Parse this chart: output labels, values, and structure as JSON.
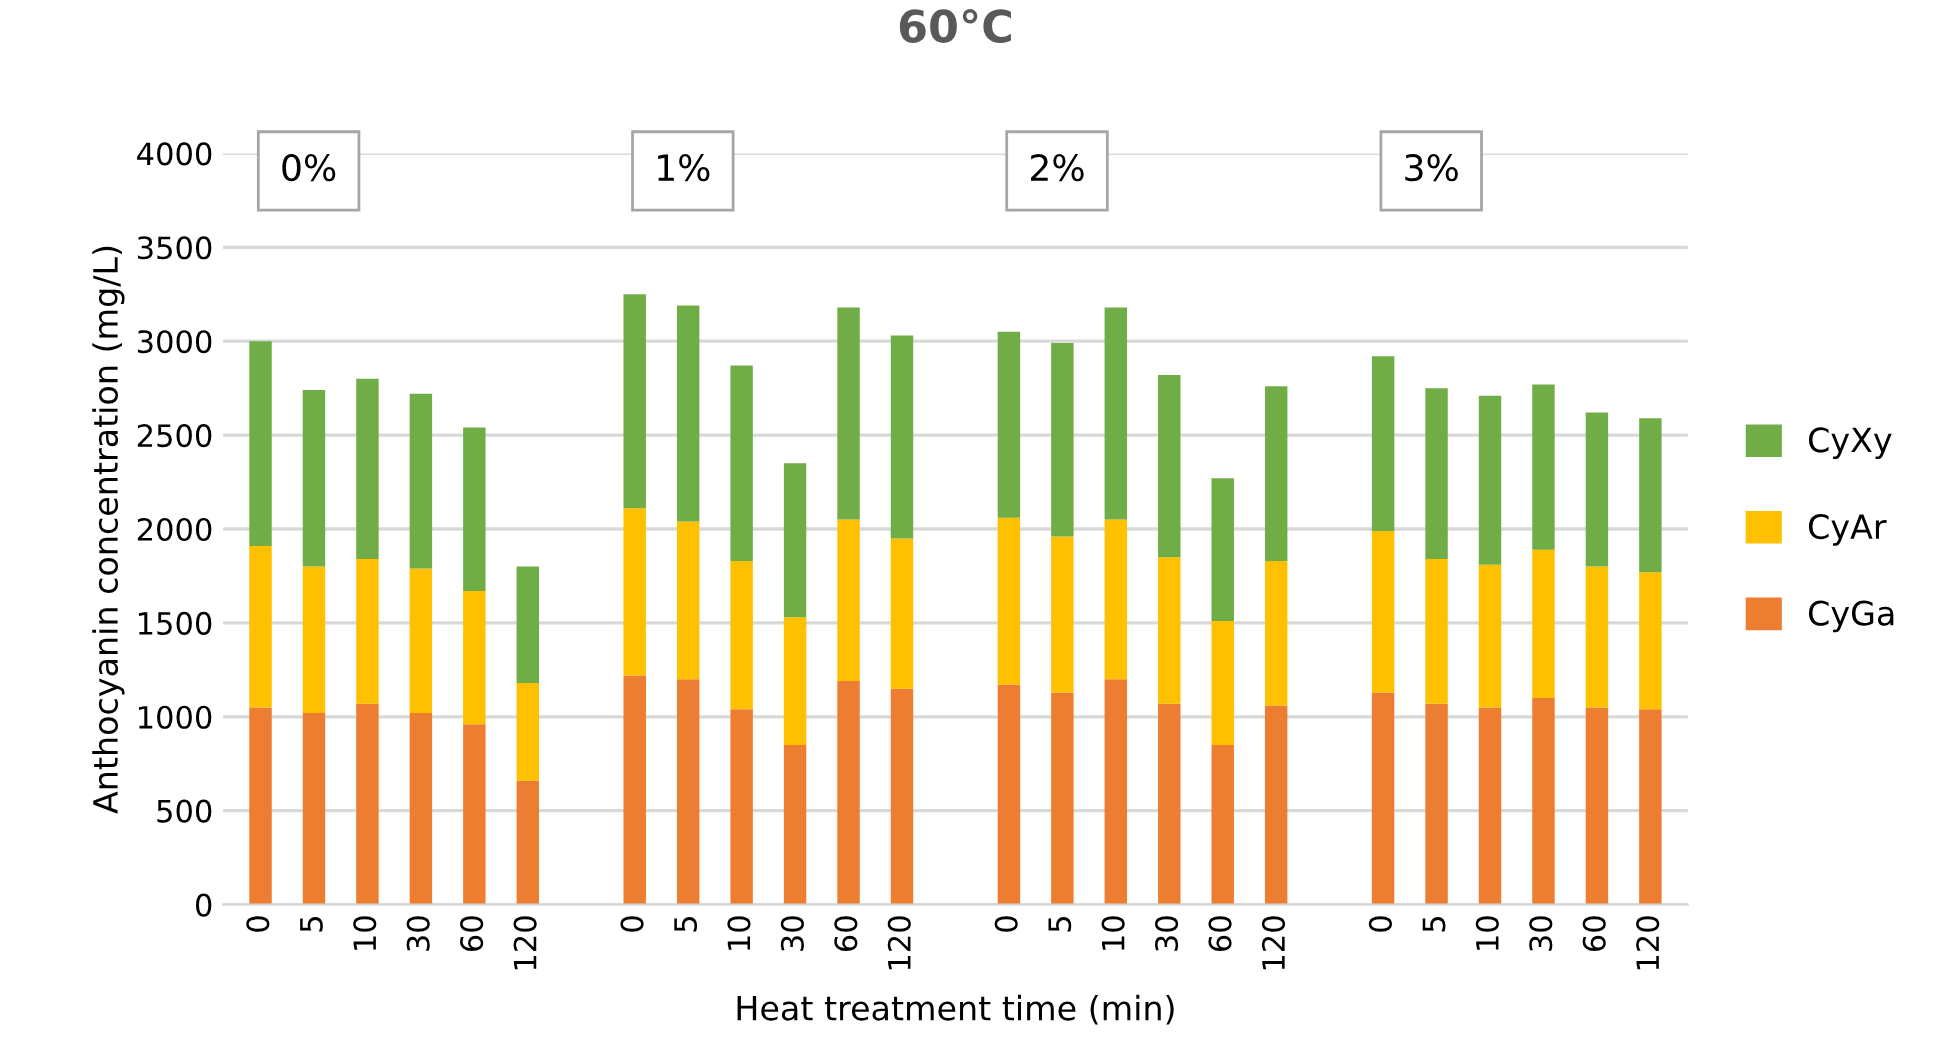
{
  "chart_data": {
    "type": "bar",
    "title": "60°C",
    "xlabel": "Heat treatment time (min)",
    "ylabel": "Anthocyanin concentration (mg/L)",
    "categories": [
      "0",
      "5",
      "10",
      "30",
      "60",
      "120",
      null,
      "0",
      "5",
      "10",
      "30",
      "60",
      "120",
      null,
      "0",
      "5",
      "10",
      "30",
      "60",
      "120",
      null,
      "0",
      "5",
      "10",
      "30",
      "60",
      "120"
    ],
    "stacked": true,
    "series": [
      {
        "name": "CyGa",
        "color": "#ed7d31",
        "values": [
          1050,
          1020,
          1070,
          1020,
          960,
          660,
          null,
          1220,
          1200,
          1040,
          850,
          1190,
          1150,
          null,
          1170,
          1130,
          1200,
          1070,
          850,
          1060,
          null,
          1130,
          1070,
          1050,
          1100,
          1050,
          1040
        ]
      },
      {
        "name": "CyAr",
        "color": "#ffc000",
        "values": [
          860,
          780,
          770,
          770,
          710,
          520,
          null,
          890,
          840,
          790,
          680,
          860,
          800,
          null,
          890,
          830,
          850,
          780,
          660,
          770,
          null,
          860,
          770,
          760,
          790,
          750,
          730
        ]
      },
      {
        "name": "CyXy",
        "color": "#70ad47",
        "values": [
          1090,
          940,
          960,
          930,
          870,
          620,
          null,
          1140,
          1150,
          1040,
          820,
          1130,
          1080,
          null,
          990,
          1030,
          1130,
          970,
          760,
          930,
          null,
          930,
          910,
          900,
          880,
          820,
          820
        ]
      }
    ],
    "ylim": [
      0,
      4000
    ],
    "yticks": [
      0,
      500,
      1000,
      1500,
      2000,
      2500,
      3000,
      3500,
      4000
    ],
    "grid": "y",
    "legend": "right",
    "annotations": [
      "0%",
      "1%",
      "2%",
      "3%"
    ]
  }
}
